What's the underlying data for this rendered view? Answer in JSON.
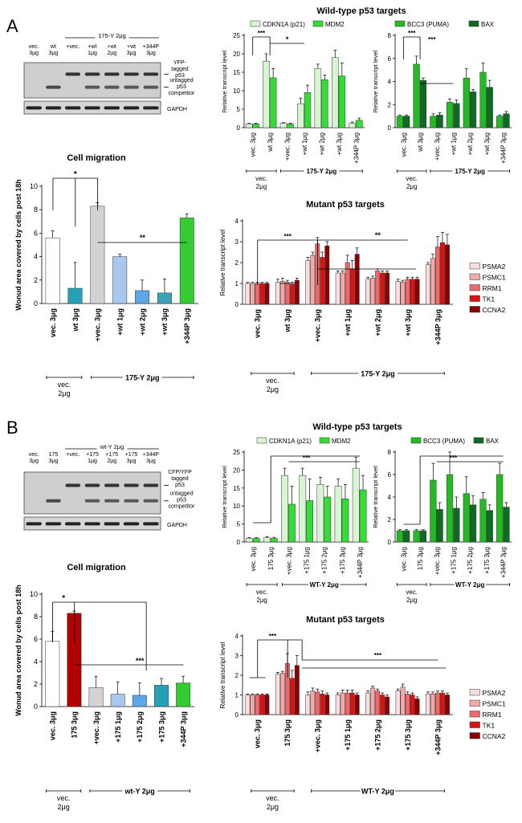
{
  "panels": [
    {
      "letter": "A",
      "blot": {
        "lanes": [
          "vec.\n3μg",
          "wt\n3μg",
          "+vec.",
          "+wt\n1μg",
          "+wt\n2μg",
          "+wt\n3μg",
          "+344P\n3μg"
        ],
        "header": "175-Y 2μg",
        "labels": [
          "YFP-\ntagged\np53",
          "untagged\np53\ncompetitor",
          "GAPDH"
        ]
      },
      "chart_data": [
        {
          "type": "bar",
          "title": "Cell migration",
          "ylabel": "Wonud area covered by cells post 18h",
          "ylim": [
            0,
            10
          ],
          "yticks": [
            0,
            2,
            4,
            6,
            8,
            10
          ],
          "categories": [
            "vec. 3μg",
            "wt 3μg",
            "+vec. 3μg",
            "+wt 1μg",
            "+wt 2μg",
            "+wt 3μg",
            "+344P 3μg"
          ],
          "values": [
            5.6,
            1.3,
            8.3,
            4.0,
            1.1,
            0.9,
            7.3
          ],
          "errors": [
            0.6,
            2.2,
            0.3,
            0.2,
            0.9,
            1.2,
            0.35
          ],
          "colors": [
            "#ffffff",
            "#26a0b6",
            "#d3d3d3",
            "#a8c8f0",
            "#5da6e8",
            "#3aa3b8",
            "#33cc33"
          ],
          "groups": [
            "vec.\n2μg",
            "175-Y 2μg"
          ],
          "significance": [
            "*",
            "**"
          ]
        },
        {
          "type": "bar",
          "title": "Wild-type p53 targets",
          "ylabel": "Relative transcript level",
          "ylim": [
            0,
            25
          ],
          "yticks": [
            0,
            5,
            10,
            15,
            20,
            25
          ],
          "categories": [
            "vec. 3μg",
            "wt 3μg",
            "+vec. 3μg",
            "+wt 1μg",
            "+wt 2μg",
            "+wt 3μg",
            "+344P 3μg"
          ],
          "series": [
            {
              "name": "CDKN1A (p21)",
              "color": "#d7f5d0",
              "values": [
                1,
                18,
                1.2,
                6.5,
                16,
                19,
                1.2
              ],
              "errors": [
                0.2,
                2.0,
                0.2,
                1.5,
                1.2,
                2.0,
                0.3
              ]
            },
            {
              "name": "MDM2",
              "color": "#33dd33",
              "values": [
                1,
                13.5,
                1,
                9.5,
                13,
                14,
                2
              ],
              "errors": [
                0.2,
                2.5,
                0.2,
                2.0,
                1.2,
                3.5,
                0.6
              ]
            }
          ],
          "groups": [
            "vec.\n2μg",
            "175-Y 2μg"
          ],
          "significance": [
            "***",
            "*"
          ]
        },
        {
          "type": "bar",
          "title": "",
          "ylabel": "Relative transcript level",
          "ylim": [
            0,
            8
          ],
          "yticks": [
            0,
            2,
            4,
            6,
            8
          ],
          "categories": [
            "vec. 3μg",
            "wt 3μg",
            "+vec. 3μg",
            "+wt 1μg",
            "+wt 2μg",
            "+wt 3μg",
            "+344P 3μg"
          ],
          "series": [
            {
              "name": "BCC3 (PUMA)",
              "color": "#22bb22",
              "values": [
                1,
                5.5,
                1,
                2.2,
                4.3,
                4.8,
                1
              ],
              "errors": [
                0.1,
                0.7,
                0.2,
                0.3,
                0.8,
                0.8,
                0.1
              ]
            },
            {
              "name": "BAX",
              "color": "#0f6a22",
              "values": [
                1,
                4.1,
                1.1,
                2.1,
                3.1,
                3.5,
                1.2
              ],
              "errors": [
                0.1,
                0.2,
                0.2,
                0.3,
                0.2,
                0.6,
                0.2
              ]
            }
          ],
          "groups": [
            "vec.\n2μg",
            "175-Y 2μg"
          ],
          "significance": [
            "***",
            "***"
          ]
        },
        {
          "type": "bar",
          "title": "Mutant p53 targets",
          "ylabel": "Relative transcript level",
          "ylim": [
            0,
            4
          ],
          "yticks": [
            0,
            1,
            2,
            3,
            4
          ],
          "categories": [
            "vec. 3μg",
            "wt 3μg",
            "+vec. 3μg",
            "+wt 1μg",
            "+wt 2μg",
            "+wt 3μg",
            "+344P 3μg"
          ],
          "series": [
            {
              "name": "PSMA2",
              "color": "#f8dede",
              "values": [
                1,
                1.05,
                2.1,
                1.5,
                1.2,
                1.1,
                1.9
              ],
              "errors": [
                0.05,
                0.15,
                0.15,
                0.1,
                0.1,
                0.1,
                0.1
              ]
            },
            {
              "name": "PSMC1",
              "color": "#f4a9a9",
              "values": [
                1,
                1.1,
                2.35,
                1.5,
                1.25,
                1.05,
                2.2
              ],
              "errors": [
                0.05,
                0.15,
                0.15,
                0.1,
                0.1,
                0.1,
                0.2
              ]
            },
            {
              "name": "RRM1",
              "color": "#ee6a6a",
              "values": [
                1,
                1.05,
                2.9,
                2.0,
                1.6,
                1.2,
                2.75
              ],
              "errors": [
                0.05,
                0.1,
                0.3,
                0.35,
                0.1,
                0.1,
                0.5
              ]
            },
            {
              "name": "TK1",
              "color": "#e01010",
              "values": [
                1,
                0.95,
                2.25,
                1.7,
                1.5,
                1.2,
                2.95
              ],
              "errors": [
                0.05,
                0.1,
                0.25,
                0.4,
                0.1,
                0.1,
                0.5
              ]
            },
            {
              "name": "CCNA2",
              "color": "#8b0000",
              "values": [
                1,
                1.15,
                2.8,
                2.4,
                1.5,
                1.2,
                2.85
              ],
              "errors": [
                0.05,
                0.1,
                0.2,
                0.3,
                0.1,
                0.1,
                0.5
              ]
            }
          ],
          "groups": [
            "vec.\n2μg",
            "175-Y 2μg"
          ],
          "significance": [
            "***",
            "**"
          ]
        }
      ]
    },
    {
      "letter": "B",
      "blot": {
        "lanes": [
          "vec.\n3μg",
          "175\n3μg",
          "+vec.",
          "+175\n1μg",
          "+175\n2μg",
          "+175\n3μg",
          "+344P\n3μg"
        ],
        "header": "wt-Y 2μg",
        "labels": [
          "CFP/YFP\ntagged\np53",
          "untagged\np53\ncompetitor",
          "GAPDH"
        ]
      },
      "chart_data": [
        {
          "type": "bar",
          "title": "Cell migration",
          "ylabel": "Wonud area covered by cells post 18h",
          "ylim": [
            0,
            10
          ],
          "yticks": [
            0,
            2,
            4,
            6,
            8,
            10
          ],
          "categories": [
            "vec. 3μg",
            "175 3μg",
            "+vec. 3μg",
            "+175 1μg",
            "+175 2μg",
            "+175 3μg",
            "+344P 3μg"
          ],
          "values": [
            5.8,
            8.3,
            1.7,
            1.1,
            1.0,
            1.9,
            2.1
          ],
          "errors": [
            0.9,
            0.2,
            1.0,
            1.1,
            1.1,
            0.6,
            0.6
          ],
          "colors": [
            "#ffffff",
            "#b20000",
            "#d3d3d3",
            "#a8c8f0",
            "#5da6e8",
            "#26a0b6",
            "#33cc33"
          ],
          "groups": [
            "vec.\n2μg",
            "wt-Y 2μg"
          ],
          "significance": [
            "*",
            "***"
          ]
        },
        {
          "type": "bar",
          "title": "Wild-type p53 targets",
          "ylabel": "Relative transcript level",
          "ylim": [
            0,
            25
          ],
          "yticks": [
            0,
            5,
            10,
            15,
            20,
            25
          ],
          "categories": [
            "vec. 3μg",
            "175 3μg",
            "+vec. 3μg",
            "+175 1μg",
            "+175 2μg",
            "+175 3μg",
            "+344P 3μg"
          ],
          "series": [
            {
              "name": "CDKN1A (p21)",
              "color": "#d7f5d0",
              "values": [
                1,
                1.2,
                18.5,
                18.5,
                16,
                15.5,
                20.5
              ],
              "errors": [
                0.2,
                0.3,
                2.0,
                2.0,
                2.0,
                2.0,
                3.0
              ]
            },
            {
              "name": "MDM2",
              "color": "#33dd33",
              "values": [
                1,
                1,
                10.5,
                11.5,
                12.5,
                12,
                14.5
              ],
              "errors": [
                0.2,
                0.3,
                5.0,
                6.0,
                3.0,
                4.0,
                4.0
              ]
            }
          ],
          "groups": [
            "vec.\n2μg",
            "WT-Y 2μg"
          ],
          "significance": [
            "***"
          ]
        },
        {
          "type": "bar",
          "title": "",
          "ylabel": "Relative transcript level",
          "ylim": [
            0,
            8
          ],
          "yticks": [
            0,
            2,
            4,
            6,
            8
          ],
          "categories": [
            "vec. 3μg",
            "175 3μg",
            "+vec. 3μg",
            "+175 1μg",
            "+175 2μg",
            "+175 3μg",
            "+344P 3μg"
          ],
          "series": [
            {
              "name": "BCC3 (PUMA)",
              "color": "#22bb22",
              "values": [
                1,
                1,
                5.5,
                6.0,
                4.3,
                3.8,
                6.0
              ],
              "errors": [
                0.1,
                0.1,
                1.5,
                2.0,
                1.5,
                0.6,
                1.0
              ]
            },
            {
              "name": "BAX",
              "color": "#0f6a22",
              "values": [
                1,
                1,
                2.9,
                3.0,
                3.3,
                2.8,
                3.1
              ],
              "errors": [
                0.1,
                0.1,
                0.6,
                1.0,
                0.8,
                0.5,
                0.4
              ]
            }
          ],
          "groups": [
            "vec.\n2μg",
            "WT-Y 2μg"
          ],
          "significance": [
            "***"
          ]
        },
        {
          "type": "bar",
          "title": "Mutant p53 targets",
          "ylabel": "Relative transcript level",
          "ylim": [
            0,
            4
          ],
          "yticks": [
            0,
            1,
            2,
            3,
            4
          ],
          "categories": [
            "vec. 3μg",
            "175 3μg",
            "+vec. 3μg",
            "+175 1μg",
            "+175 2μg",
            "+175 3μg",
            "+344P 3μg"
          ],
          "series": [
            {
              "name": "PSMA2",
              "color": "#f8dede",
              "values": [
                1,
                2.05,
                1,
                1,
                1.1,
                1.2,
                1.05
              ],
              "errors": [
                0.05,
                0.1,
                0.15,
                0.1,
                0.1,
                0.1,
                0.1
              ]
            },
            {
              "name": "PSMC1",
              "color": "#f4a9a9",
              "values": [
                1,
                2.1,
                1.2,
                1.1,
                1.35,
                1.4,
                1.05
              ],
              "errors": [
                0.05,
                0.1,
                0.15,
                0.15,
                0.1,
                0.15,
                0.1
              ]
            },
            {
              "name": "RRM1",
              "color": "#ee6a6a",
              "values": [
                1,
                2.6,
                1.15,
                1.1,
                1.2,
                1.05,
                1.1
              ],
              "errors": [
                0.05,
                0.5,
                0.15,
                0.15,
                0.1,
                0.1,
                0.1
              ]
            },
            {
              "name": "TK1",
              "color": "#e01010",
              "values": [
                1,
                1.85,
                1.05,
                1.1,
                1.0,
                1.0,
                1.1
              ],
              "errors": [
                0.05,
                0.4,
                0.15,
                0.15,
                0.1,
                0.1,
                0.1
              ]
            },
            {
              "name": "CCNA2",
              "color": "#8b0000",
              "values": [
                1,
                2.5,
                1.0,
                1.0,
                0.9,
                0.8,
                1.0
              ],
              "errors": [
                0.05,
                0.5,
                0.1,
                0.1,
                0.1,
                0.1,
                0.1
              ]
            }
          ],
          "groups": [
            "vec.\n2μg",
            "WT-Y 2μg"
          ],
          "significance": [
            "***",
            "***"
          ]
        }
      ]
    }
  ]
}
